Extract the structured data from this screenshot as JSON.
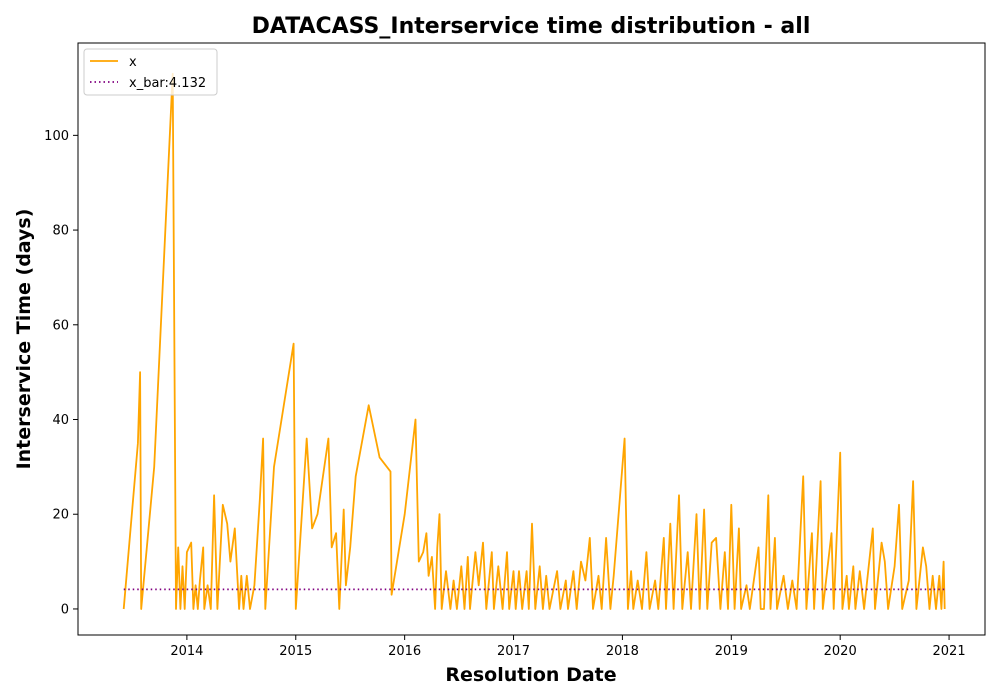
{
  "chart_data": {
    "type": "line",
    "title": "DATACASS_Interservice time distribution - all",
    "xlabel": "Resolution Date",
    "ylabel": "Interservice Time (days)",
    "xlim": [
      2013.0,
      2021.33
    ],
    "ylim": [
      -5.5,
      119.5
    ],
    "x_ticks": [
      2014,
      2015,
      2016,
      2017,
      2018,
      2019,
      2020,
      2021
    ],
    "x_tick_labels": [
      "2014",
      "2015",
      "2016",
      "2017",
      "2018",
      "2019",
      "2020",
      "2021"
    ],
    "y_ticks": [
      0,
      20,
      40,
      60,
      80,
      100
    ],
    "y_tick_labels": [
      "0",
      "20",
      "40",
      "60",
      "80",
      "100"
    ],
    "grid": false,
    "legend_position": "top-left",
    "colors": {
      "x": "#FFA500",
      "x_bar": "#800080"
    },
    "series": [
      {
        "name": "x",
        "style": "solid",
        "points": [
          [
            2013.42,
            0
          ],
          [
            2013.55,
            35
          ],
          [
            2013.57,
            50
          ],
          [
            2013.58,
            0
          ],
          [
            2013.7,
            30
          ],
          [
            2013.87,
            113
          ],
          [
            2013.9,
            0
          ],
          [
            2013.92,
            13
          ],
          [
            2013.94,
            0
          ],
          [
            2013.96,
            9
          ],
          [
            2013.98,
            0
          ],
          [
            2014.0,
            12
          ],
          [
            2014.04,
            14
          ],
          [
            2014.06,
            0
          ],
          [
            2014.08,
            5
          ],
          [
            2014.1,
            0
          ],
          [
            2014.12,
            6
          ],
          [
            2014.15,
            13
          ],
          [
            2014.16,
            0
          ],
          [
            2014.19,
            5
          ],
          [
            2014.22,
            0
          ],
          [
            2014.25,
            24
          ],
          [
            2014.28,
            0
          ],
          [
            2014.33,
            22
          ],
          [
            2014.37,
            18
          ],
          [
            2014.4,
            10
          ],
          [
            2014.44,
            17
          ],
          [
            2014.48,
            0
          ],
          [
            2014.5,
            7
          ],
          [
            2014.52,
            0
          ],
          [
            2014.55,
            7
          ],
          [
            2014.58,
            0
          ],
          [
            2014.62,
            5
          ],
          [
            2014.67,
            23
          ],
          [
            2014.7,
            36
          ],
          [
            2014.72,
            0
          ],
          [
            2014.8,
            30
          ],
          [
            2014.98,
            56
          ],
          [
            2015.0,
            0
          ],
          [
            2015.1,
            36
          ],
          [
            2015.15,
            17
          ],
          [
            2015.2,
            20
          ],
          [
            2015.3,
            36
          ],
          [
            2015.33,
            13
          ],
          [
            2015.37,
            16
          ],
          [
            2015.4,
            0
          ],
          [
            2015.44,
            21
          ],
          [
            2015.46,
            5
          ],
          [
            2015.5,
            13
          ],
          [
            2015.55,
            28
          ],
          [
            2015.67,
            43
          ],
          [
            2015.77,
            32
          ],
          [
            2015.87,
            29
          ],
          [
            2015.88,
            3
          ],
          [
            2016.0,
            20
          ],
          [
            2016.1,
            40
          ],
          [
            2016.13,
            10
          ],
          [
            2016.17,
            12
          ],
          [
            2016.2,
            16
          ],
          [
            2016.22,
            7
          ],
          [
            2016.25,
            11
          ],
          [
            2016.28,
            0
          ],
          [
            2016.3,
            13
          ],
          [
            2016.32,
            20
          ],
          [
            2016.34,
            0
          ],
          [
            2016.38,
            8
          ],
          [
            2016.42,
            0
          ],
          [
            2016.45,
            6
          ],
          [
            2016.48,
            0
          ],
          [
            2016.52,
            9
          ],
          [
            2016.55,
            0
          ],
          [
            2016.58,
            11
          ],
          [
            2016.6,
            0
          ],
          [
            2016.65,
            12
          ],
          [
            2016.68,
            5
          ],
          [
            2016.72,
            14
          ],
          [
            2016.75,
            0
          ],
          [
            2016.8,
            12
          ],
          [
            2016.82,
            0
          ],
          [
            2016.86,
            9
          ],
          [
            2016.9,
            0
          ],
          [
            2016.94,
            12
          ],
          [
            2016.96,
            0
          ],
          [
            2017.0,
            8
          ],
          [
            2017.02,
            0
          ],
          [
            2017.05,
            8
          ],
          [
            2017.08,
            0
          ],
          [
            2017.12,
            8
          ],
          [
            2017.14,
            0
          ],
          [
            2017.17,
            18
          ],
          [
            2017.2,
            0
          ],
          [
            2017.24,
            9
          ],
          [
            2017.27,
            0
          ],
          [
            2017.3,
            7
          ],
          [
            2017.33,
            0
          ],
          [
            2017.4,
            8
          ],
          [
            2017.43,
            0
          ],
          [
            2017.48,
            6
          ],
          [
            2017.5,
            0
          ],
          [
            2017.55,
            8
          ],
          [
            2017.58,
            0
          ],
          [
            2017.62,
            10
          ],
          [
            2017.66,
            6
          ],
          [
            2017.7,
            15
          ],
          [
            2017.73,
            0
          ],
          [
            2017.78,
            7
          ],
          [
            2017.81,
            0
          ],
          [
            2017.85,
            15
          ],
          [
            2017.89,
            0
          ],
          [
            2017.92,
            7
          ],
          [
            2018.02,
            36
          ],
          [
            2018.05,
            0
          ],
          [
            2018.08,
            8
          ],
          [
            2018.1,
            0
          ],
          [
            2018.14,
            6
          ],
          [
            2018.18,
            0
          ],
          [
            2018.22,
            12
          ],
          [
            2018.25,
            0
          ],
          [
            2018.3,
            6
          ],
          [
            2018.33,
            0
          ],
          [
            2018.38,
            15
          ],
          [
            2018.4,
            0
          ],
          [
            2018.44,
            18
          ],
          [
            2018.47,
            0
          ],
          [
            2018.52,
            24
          ],
          [
            2018.55,
            0
          ],
          [
            2018.6,
            12
          ],
          [
            2018.63,
            0
          ],
          [
            2018.68,
            20
          ],
          [
            2018.71,
            0
          ],
          [
            2018.75,
            21
          ],
          [
            2018.78,
            0
          ],
          [
            2018.82,
            14
          ],
          [
            2018.86,
            15
          ],
          [
            2018.9,
            0
          ],
          [
            2018.94,
            12
          ],
          [
            2018.97,
            0
          ],
          [
            2019.0,
            22
          ],
          [
            2019.03,
            0
          ],
          [
            2019.07,
            17
          ],
          [
            2019.09,
            0
          ],
          [
            2019.14,
            5
          ],
          [
            2019.17,
            0
          ],
          [
            2019.25,
            13
          ],
          [
            2019.27,
            0
          ],
          [
            2019.3,
            0
          ],
          [
            2019.34,
            24
          ],
          [
            2019.36,
            0
          ],
          [
            2019.4,
            15
          ],
          [
            2019.42,
            0
          ],
          [
            2019.48,
            7
          ],
          [
            2019.52,
            0
          ],
          [
            2019.56,
            6
          ],
          [
            2019.6,
            0
          ],
          [
            2019.66,
            28
          ],
          [
            2019.69,
            0
          ],
          [
            2019.74,
            16
          ],
          [
            2019.76,
            0
          ],
          [
            2019.82,
            27
          ],
          [
            2019.84,
            0
          ],
          [
            2019.88,
            8
          ],
          [
            2019.92,
            16
          ],
          [
            2019.94,
            0
          ],
          [
            2020.0,
            33
          ],
          [
            2020.02,
            0
          ],
          [
            2020.06,
            7
          ],
          [
            2020.08,
            0
          ],
          [
            2020.12,
            9
          ],
          [
            2020.14,
            0
          ],
          [
            2020.18,
            8
          ],
          [
            2020.22,
            0
          ],
          [
            2020.3,
            17
          ],
          [
            2020.32,
            0
          ],
          [
            2020.38,
            14
          ],
          [
            2020.41,
            10
          ],
          [
            2020.44,
            0
          ],
          [
            2020.5,
            9
          ],
          [
            2020.54,
            22
          ],
          [
            2020.57,
            0
          ],
          [
            2020.63,
            6
          ],
          [
            2020.67,
            27
          ],
          [
            2020.7,
            0
          ],
          [
            2020.76,
            13
          ],
          [
            2020.79,
            9
          ],
          [
            2020.82,
            0
          ],
          [
            2020.85,
            7
          ],
          [
            2020.88,
            0
          ],
          [
            2020.91,
            7
          ],
          [
            2020.93,
            0
          ],
          [
            2020.95,
            10
          ],
          [
            2020.96,
            0
          ]
        ]
      },
      {
        "name": "x_bar:4.132",
        "style": "dotted",
        "value": 4.132,
        "x_range": [
          2013.42,
          2020.96
        ]
      }
    ]
  }
}
